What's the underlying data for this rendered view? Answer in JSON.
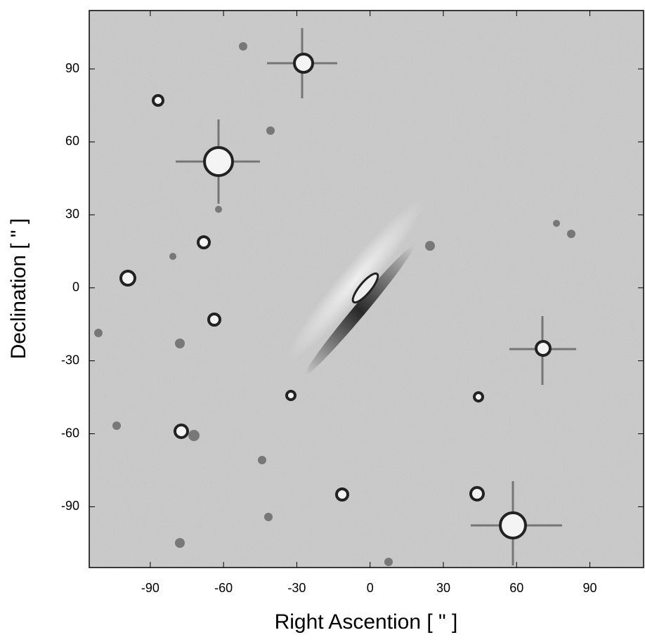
{
  "chart_data": {
    "type": "image",
    "xlabel": "Right Ascention  [ \" ]",
    "ylabel": "Declination  [ \" ]",
    "xlim": [
      -115,
      112
    ],
    "ylim": [
      -115,
      114
    ],
    "xticks": [
      -90,
      -60,
      -30,
      0,
      30,
      60,
      90
    ],
    "yticks": [
      -90,
      -60,
      -30,
      0,
      30,
      60,
      90
    ]
  }
}
